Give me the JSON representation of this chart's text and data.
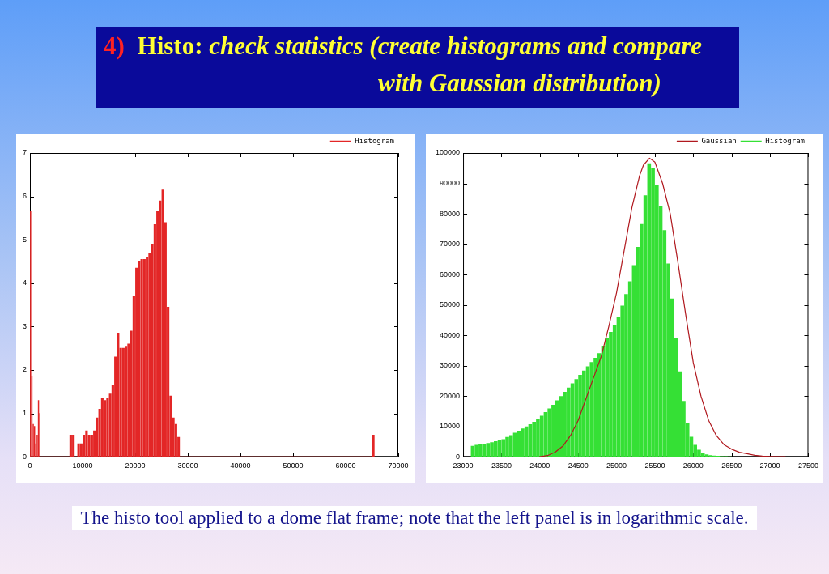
{
  "chart_data": [
    {
      "type": "histogram",
      "title": "4) Histo: check statistics (create histograms and compare with Gaussian distribution)",
      "annotations": [
        "The histo tool applied to a dome flat frame; note that the left panel is in logarithmic scale."
      ],
      "bins": [
        0,
        250,
        500,
        750,
        1000,
        1250,
        1500,
        1750,
        2000,
        7500,
        8000,
        8500,
        9000,
        9500,
        10000,
        10500,
        11000,
        11500,
        12000,
        12500,
        13000,
        13500,
        14000,
        14500,
        15000,
        15500,
        16000,
        16500,
        17000,
        17500,
        18000,
        18500,
        19000,
        19500,
        20000,
        20500,
        21000,
        21500,
        22000,
        22500,
        23000,
        23500,
        24000,
        24500,
        25000,
        25500,
        26000,
        26500,
        27000,
        27500,
        28000,
        28500,
        65000,
        65500
      ],
      "series": [
        {
          "name": "Histogram",
          "color": "#e32626",
          "values": [
            5.65,
            1.85,
            0.75,
            0.7,
            0.3,
            0.5,
            1.3,
            1.0,
            0,
            0.5,
            0.5,
            0,
            0.3,
            0.3,
            0.5,
            0.6,
            0.5,
            0.5,
            0.6,
            0.9,
            1.1,
            1.35,
            1.3,
            1.35,
            1.45,
            1.65,
            2.3,
            2.85,
            2.5,
            2.5,
            2.55,
            2.6,
            2.9,
            3.7,
            4.35,
            4.5,
            4.55,
            4.55,
            4.6,
            4.7,
            4.9,
            5.35,
            5.65,
            5.9,
            6.15,
            5.4,
            3.45,
            1.4,
            0.9,
            0.75,
            0.45,
            0,
            0.5
          ]
        }
      ],
      "xlim": [
        0,
        70000
      ],
      "xticks": [
        0,
        10000,
        20000,
        30000,
        40000,
        50000,
        60000,
        70000
      ],
      "ylim": [
        0,
        7
      ],
      "yticks": [
        0,
        1,
        2,
        3,
        4,
        5,
        6,
        7
      ],
      "legend": "top right"
    },
    {
      "type": "histogram",
      "bins": [
        23100,
        23150,
        23200,
        23250,
        23300,
        23350,
        23400,
        23450,
        23500,
        23550,
        23600,
        23650,
        23700,
        23750,
        23800,
        23850,
        23900,
        23950,
        24000,
        24050,
        24100,
        24150,
        24200,
        24250,
        24300,
        24350,
        24400,
        24450,
        24500,
        24550,
        24600,
        24650,
        24700,
        24750,
        24800,
        24850,
        24900,
        24950,
        25000,
        25050,
        25100,
        25150,
        25200,
        25250,
        25300,
        25350,
        25400,
        25450,
        25500,
        25550,
        25600,
        25650,
        25700,
        25750,
        25800,
        25850,
        25900,
        25950,
        26000,
        26050,
        26100,
        26150,
        26200,
        26250,
        26300,
        26350,
        26400,
        26450,
        26500
      ],
      "series": [
        {
          "name": "Gaussian",
          "type": "line",
          "color": "#b0181e",
          "x": [
            24000,
            24100,
            24200,
            24300,
            24400,
            24500,
            24600,
            24700,
            24800,
            24900,
            25000,
            25100,
            25200,
            25300,
            25350,
            25430,
            25500,
            25600,
            25700,
            25800,
            25900,
            26000,
            26100,
            26200,
            26300,
            26400,
            26500,
            26600,
            26700,
            26800,
            26900,
            27000,
            27200
          ],
          "values": [
            0,
            400,
            1500,
            3500,
            7000,
            12000,
            19000,
            26000,
            33000,
            43000,
            54000,
            68000,
            82000,
            92500,
            96000,
            98300,
            97000,
            90000,
            80000,
            64000,
            47000,
            31000,
            20000,
            12000,
            7000,
            4000,
            2500,
            1500,
            1000,
            500,
            200,
            100,
            0
          ]
        },
        {
          "name": "Histogram",
          "color": "#35e035",
          "values": [
            3500,
            3800,
            4000,
            4200,
            4400,
            4700,
            5000,
            5400,
            5700,
            6400,
            7000,
            7800,
            8500,
            9200,
            9900,
            10600,
            11400,
            12300,
            13400,
            14600,
            15800,
            17000,
            18500,
            19900,
            21300,
            22700,
            24100,
            25500,
            26900,
            28300,
            29700,
            31100,
            32500,
            34000,
            36500,
            39000,
            41000,
            43200,
            46000,
            49700,
            53500,
            57700,
            63000,
            69000,
            76500,
            86000,
            96500,
            95000,
            89500,
            82500,
            74500,
            63500,
            52000,
            39000,
            28000,
            18300,
            11000,
            6500,
            3800,
            2200,
            1300,
            700,
            400,
            300,
            200,
            100,
            100,
            0
          ]
        }
      ],
      "xlim": [
        23000,
        27500
      ],
      "xticks": [
        23000,
        23500,
        24000,
        24500,
        25000,
        25500,
        26000,
        26500,
        27000,
        27500
      ],
      "ylim": [
        0,
        100000
      ],
      "yticks": [
        0,
        10000,
        20000,
        30000,
        40000,
        50000,
        60000,
        70000,
        80000,
        90000,
        100000
      ],
      "legend": "top right"
    }
  ]
}
